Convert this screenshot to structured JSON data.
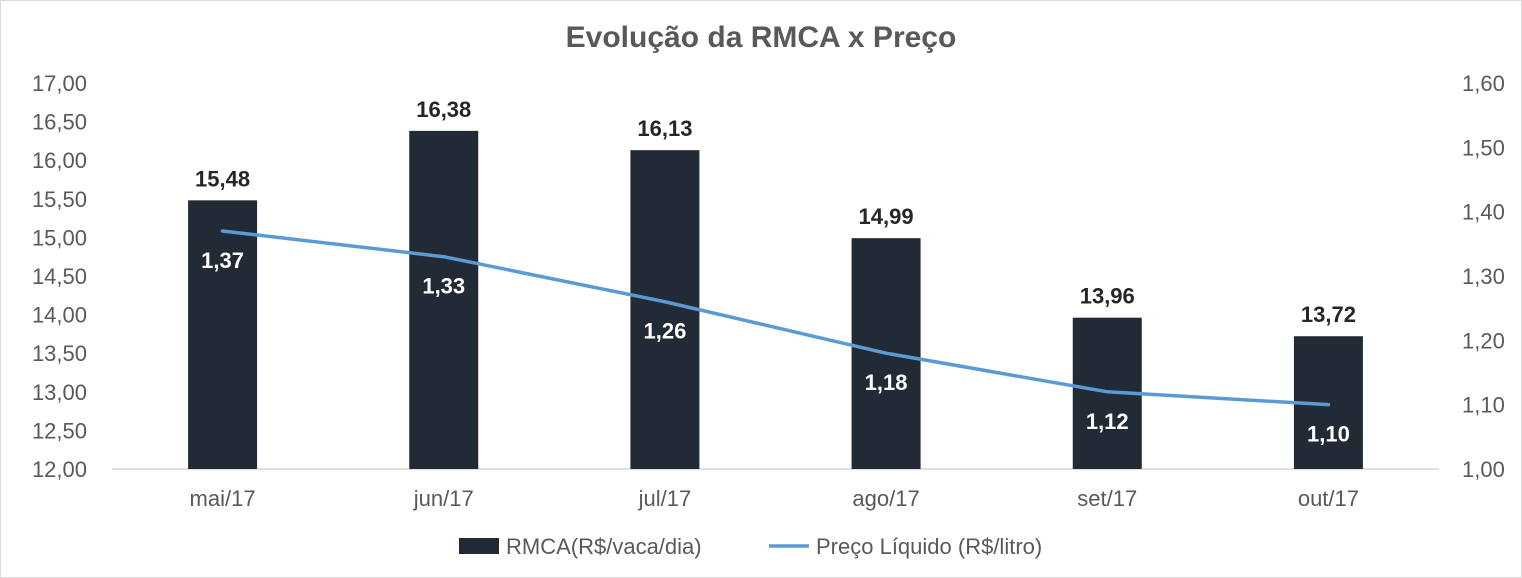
{
  "chart_data": {
    "type": "bar",
    "title": "Evolução da RMCA x Preço",
    "categories": [
      "mai/17",
      "jun/17",
      "jul/17",
      "ago/17",
      "set/17",
      "out/17"
    ],
    "series": [
      {
        "name": "RMCA(R$/vaca/dia)",
        "type": "bar",
        "axis": "left",
        "values": [
          15.48,
          16.38,
          16.13,
          14.99,
          13.96,
          13.72
        ],
        "labels": [
          "15,48",
          "16,38",
          "16,13",
          "14,99",
          "13,96",
          "13,72"
        ],
        "color": "#222a35"
      },
      {
        "name": "Preço Líquido (R$/litro)",
        "type": "line",
        "axis": "right",
        "values": [
          1.37,
          1.33,
          1.26,
          1.18,
          1.12,
          1.1
        ],
        "labels": [
          "1,37",
          "1,33",
          "1,26",
          "1,18",
          "1,12",
          "1,10"
        ],
        "color": "#5b9bd5"
      }
    ],
    "y_left": {
      "min": 12.0,
      "max": 17.0,
      "ticks": [
        "12,00",
        "12,50",
        "13,00",
        "13,50",
        "14,00",
        "14,50",
        "15,00",
        "15,50",
        "16,00",
        "16,50",
        "17,00"
      ]
    },
    "y_right": {
      "min": 1.0,
      "max": 1.6,
      "ticks": [
        "1,00",
        "1,10",
        "1,20",
        "1,30",
        "1,40",
        "1,50",
        "1,60"
      ]
    },
    "grid": false,
    "legend_position": "bottom"
  }
}
